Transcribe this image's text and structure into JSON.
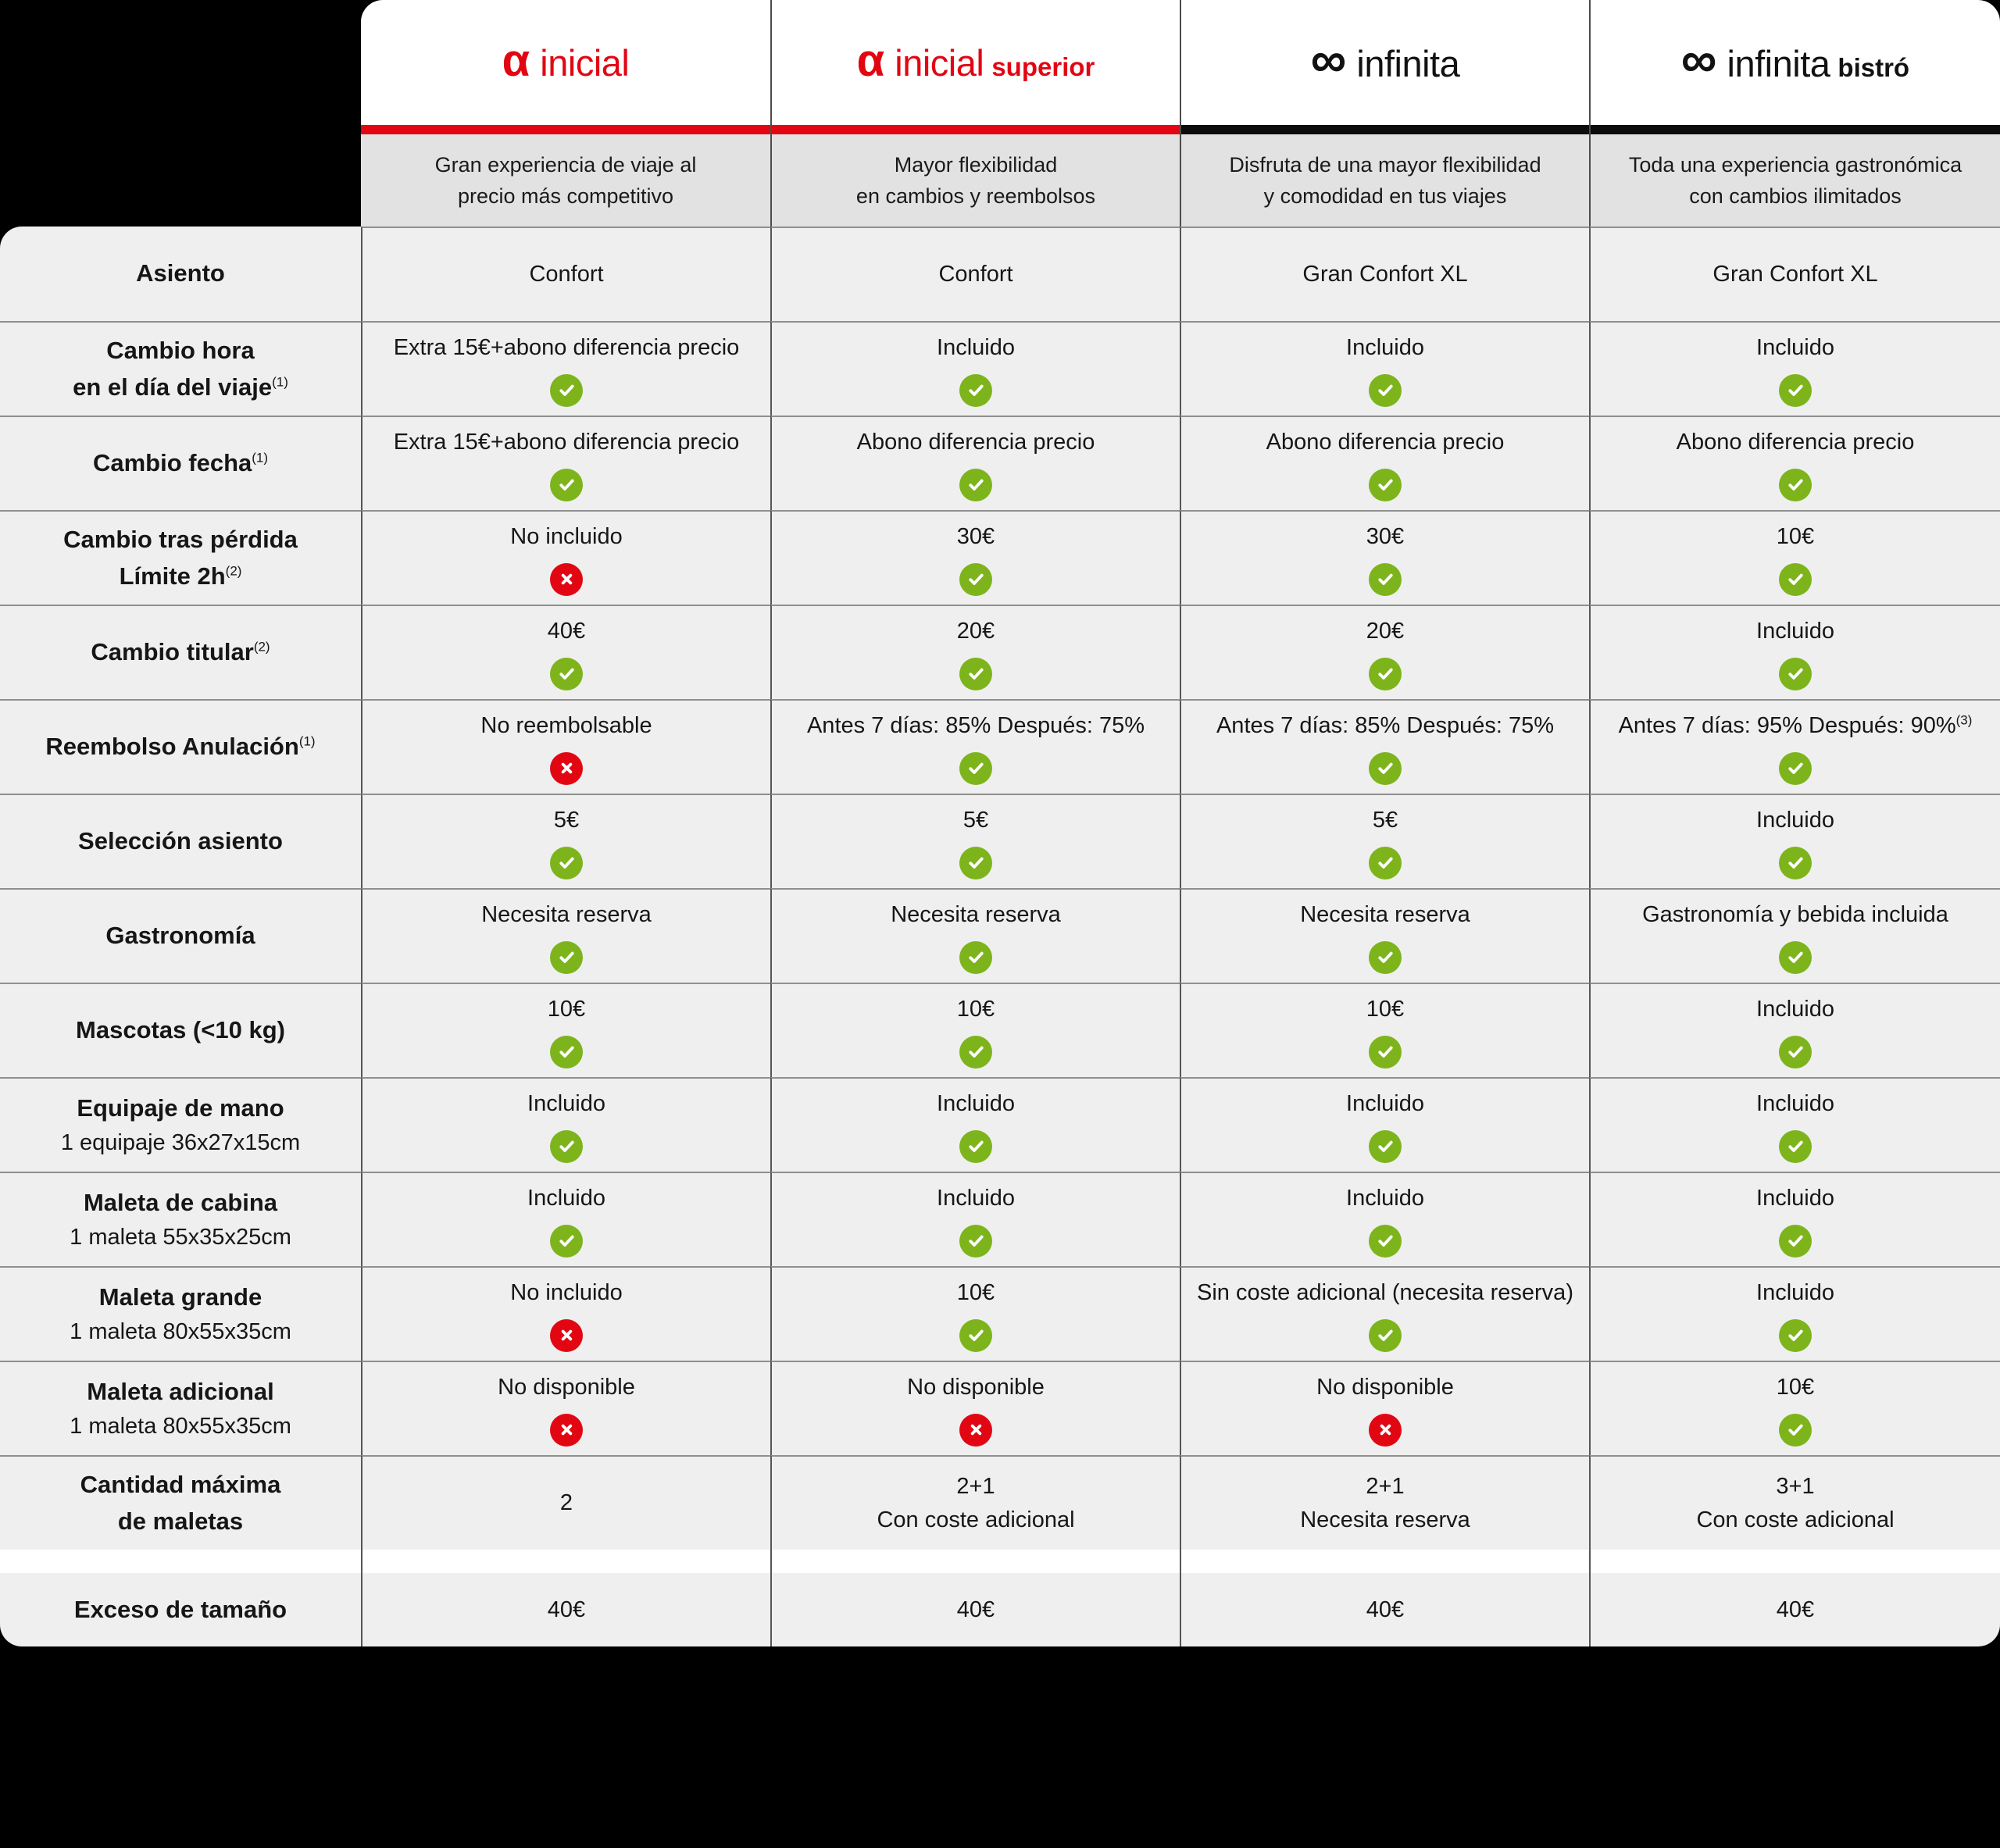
{
  "palette": {
    "page_background": "#000000",
    "brand_red": "#e20613",
    "bar_black": "#0c0c0c",
    "check_green": "#7db41c",
    "cross_red": "#e20613",
    "card_white": "#ffffff",
    "description_band_gray": "#e2e2e2",
    "row_gray": "#efefef",
    "text_dark": "#161616"
  },
  "columns": [
    {
      "key": "inicial",
      "glyph": "α",
      "name": "inicial",
      "suffix": "",
      "logo_color": "#e20613",
      "bar_color": "#e20613",
      "description": [
        "Gran experiencia de viaje al",
        "precio más competitivo"
      ]
    },
    {
      "key": "inicial-superior",
      "glyph": "α",
      "name": "inicial",
      "suffix": "superior",
      "logo_color": "#e20613",
      "bar_color": "#e20613",
      "description": [
        "Mayor flexibilidad",
        "en cambios y reembolsos"
      ]
    },
    {
      "key": "infinita",
      "glyph": "∞",
      "name": "infinita",
      "suffix": "",
      "logo_color": "#121212",
      "bar_color": "#0c0c0c",
      "description": [
        "Disfruta de una mayor flexibilidad",
        "y comodidad en tus viajes"
      ]
    },
    {
      "key": "infinita-bistro",
      "glyph": "∞",
      "name": "infinita",
      "suffix": "bistró",
      "logo_color": "#121212",
      "bar_color": "#0c0c0c",
      "description": [
        "Toda una experiencia gastronómica",
        "con cambios ilimitados"
      ]
    }
  ],
  "rows": [
    {
      "key": "asiento",
      "label_lines": [
        {
          "text": "Asiento",
          "bold": true
        }
      ],
      "cells": [
        {
          "lines": [
            "Confort"
          ],
          "icon": "none"
        },
        {
          "lines": [
            "Confort"
          ],
          "icon": "none"
        },
        {
          "lines": [
            "Gran Confort XL"
          ],
          "icon": "none"
        },
        {
          "lines": [
            "Gran Confort XL"
          ],
          "icon": "none"
        }
      ]
    },
    {
      "key": "cambio-hora",
      "label_lines": [
        {
          "text": "Cambio hora",
          "bold": true
        },
        {
          "text": "en el día del viaje",
          "bold": true,
          "sup": "(1)"
        }
      ],
      "cells": [
        {
          "lines": [
            "Extra 15€+abono diferencia precio"
          ],
          "icon": "check"
        },
        {
          "lines": [
            "Incluido"
          ],
          "icon": "check"
        },
        {
          "lines": [
            "Incluido"
          ],
          "icon": "check"
        },
        {
          "lines": [
            "Incluido"
          ],
          "icon": "check"
        }
      ]
    },
    {
      "key": "cambio-fecha",
      "label_lines": [
        {
          "text": "Cambio fecha",
          "bold": true,
          "sup": "(1)"
        }
      ],
      "cells": [
        {
          "lines": [
            "Extra 15€+abono diferencia precio"
          ],
          "icon": "check"
        },
        {
          "lines": [
            "Abono diferencia precio"
          ],
          "icon": "check"
        },
        {
          "lines": [
            "Abono diferencia precio"
          ],
          "icon": "check"
        },
        {
          "lines": [
            "Abono diferencia precio"
          ],
          "icon": "check"
        }
      ]
    },
    {
      "key": "cambio-tras-perdida",
      "label_lines": [
        {
          "text": "Cambio tras pérdida",
          "bold": true
        },
        {
          "text": "Límite 2h",
          "bold": true,
          "sup": "(2)"
        }
      ],
      "cells": [
        {
          "lines": [
            "No incluido"
          ],
          "icon": "cross"
        },
        {
          "lines": [
            "30€"
          ],
          "icon": "check"
        },
        {
          "lines": [
            "30€"
          ],
          "icon": "check"
        },
        {
          "lines": [
            "10€"
          ],
          "icon": "check"
        }
      ]
    },
    {
      "key": "cambio-titular",
      "label_lines": [
        {
          "text": "Cambio titular",
          "bold": true,
          "sup": "(2)"
        }
      ],
      "cells": [
        {
          "lines": [
            "40€"
          ],
          "icon": "check"
        },
        {
          "lines": [
            "20€"
          ],
          "icon": "check"
        },
        {
          "lines": [
            "20€"
          ],
          "icon": "check"
        },
        {
          "lines": [
            "Incluido"
          ],
          "icon": "check"
        }
      ]
    },
    {
      "key": "reembolso-anulacion",
      "label_lines": [
        {
          "text": "Reembolso Anulación",
          "bold": true,
          "sup": "(1)"
        }
      ],
      "cells": [
        {
          "lines": [
            "No reembolsable"
          ],
          "icon": "cross"
        },
        {
          "lines": [
            "Antes 7 días: 85% Después: 75%"
          ],
          "icon": "check"
        },
        {
          "lines": [
            "Antes 7 días: 85% Después: 75%"
          ],
          "icon": "check"
        },
        {
          "lines": [
            "Antes 7 días: 95% Después: 90%"
          ],
          "sup": "(3)",
          "icon": "check"
        }
      ]
    },
    {
      "key": "seleccion-asiento",
      "label_lines": [
        {
          "text": "Selección asiento",
          "bold": true
        }
      ],
      "cells": [
        {
          "lines": [
            "5€"
          ],
          "icon": "check"
        },
        {
          "lines": [
            "5€"
          ],
          "icon": "check"
        },
        {
          "lines": [
            "5€"
          ],
          "icon": "check"
        },
        {
          "lines": [
            "Incluido"
          ],
          "icon": "check"
        }
      ]
    },
    {
      "key": "gastronomia",
      "label_lines": [
        {
          "text": "Gastronomía",
          "bold": true
        }
      ],
      "cells": [
        {
          "lines": [
            "Necesita reserva"
          ],
          "icon": "check"
        },
        {
          "lines": [
            "Necesita reserva"
          ],
          "icon": "check"
        },
        {
          "lines": [
            "Necesita reserva"
          ],
          "icon": "check"
        },
        {
          "lines": [
            "Gastronomía y bebida incluida"
          ],
          "icon": "check"
        }
      ]
    },
    {
      "key": "mascotas",
      "label_lines": [
        {
          "text": "Mascotas (<10 kg)",
          "bold": true
        }
      ],
      "cells": [
        {
          "lines": [
            "10€"
          ],
          "icon": "check"
        },
        {
          "lines": [
            "10€"
          ],
          "icon": "check"
        },
        {
          "lines": [
            "10€"
          ],
          "icon": "check"
        },
        {
          "lines": [
            "Incluido"
          ],
          "icon": "check"
        }
      ]
    },
    {
      "key": "equipaje-de-mano",
      "label_lines": [
        {
          "text": "Equipaje de mano",
          "bold": true
        },
        {
          "text": "1 equipaje 36x27x15cm",
          "bold": false
        }
      ],
      "cells": [
        {
          "lines": [
            "Incluido"
          ],
          "icon": "check"
        },
        {
          "lines": [
            "Incluido"
          ],
          "icon": "check"
        },
        {
          "lines": [
            "Incluido"
          ],
          "icon": "check"
        },
        {
          "lines": [
            "Incluido"
          ],
          "icon": "check"
        }
      ]
    },
    {
      "key": "maleta-de-cabina",
      "label_lines": [
        {
          "text": "Maleta de cabina",
          "bold": true
        },
        {
          "text": "1 maleta 55x35x25cm",
          "bold": false
        }
      ],
      "cells": [
        {
          "lines": [
            "Incluido"
          ],
          "icon": "check"
        },
        {
          "lines": [
            "Incluido"
          ],
          "icon": "check"
        },
        {
          "lines": [
            "Incluido"
          ],
          "icon": "check"
        },
        {
          "lines": [
            "Incluido"
          ],
          "icon": "check"
        }
      ]
    },
    {
      "key": "maleta-grande",
      "label_lines": [
        {
          "text": "Maleta grande",
          "bold": true
        },
        {
          "text": "1 maleta 80x55x35cm",
          "bold": false
        }
      ],
      "cells": [
        {
          "lines": [
            "No incluido"
          ],
          "icon": "cross"
        },
        {
          "lines": [
            "10€"
          ],
          "icon": "check"
        },
        {
          "lines": [
            "Sin coste adicional (necesita reserva)"
          ],
          "icon": "check"
        },
        {
          "lines": [
            "Incluido"
          ],
          "icon": "check"
        }
      ]
    },
    {
      "key": "maleta-adicional",
      "label_lines": [
        {
          "text": "Maleta adicional",
          "bold": true
        },
        {
          "text": "1 maleta 80x55x35cm",
          "bold": false
        }
      ],
      "cells": [
        {
          "lines": [
            "No disponible"
          ],
          "icon": "cross"
        },
        {
          "lines": [
            "No disponible"
          ],
          "icon": "cross"
        },
        {
          "lines": [
            "No disponible"
          ],
          "icon": "cross"
        },
        {
          "lines": [
            "10€"
          ],
          "icon": "check"
        }
      ]
    },
    {
      "key": "cantidad-maxima-maletas",
      "label_lines": [
        {
          "text": "Cantidad máxima",
          "bold": true
        },
        {
          "text": "de maletas",
          "bold": true
        }
      ],
      "cells": [
        {
          "lines": [
            "2"
          ],
          "icon": "none"
        },
        {
          "lines": [
            "2+1",
            "Con coste adicional"
          ],
          "icon": "none"
        },
        {
          "lines": [
            "2+1",
            "Necesita reserva"
          ],
          "icon": "none"
        },
        {
          "lines": [
            "3+1",
            "Con coste adicional"
          ],
          "icon": "none"
        }
      ]
    },
    {
      "key": "exceso-de-tamano",
      "separator_before": true,
      "last": true,
      "label_lines": [
        {
          "text": "Exceso de tamaño",
          "bold": true
        }
      ],
      "cells": [
        {
          "lines": [
            "40€"
          ],
          "icon": "none"
        },
        {
          "lines": [
            "40€"
          ],
          "icon": "none"
        },
        {
          "lines": [
            "40€"
          ],
          "icon": "none"
        },
        {
          "lines": [
            "40€"
          ],
          "icon": "none"
        }
      ]
    }
  ]
}
